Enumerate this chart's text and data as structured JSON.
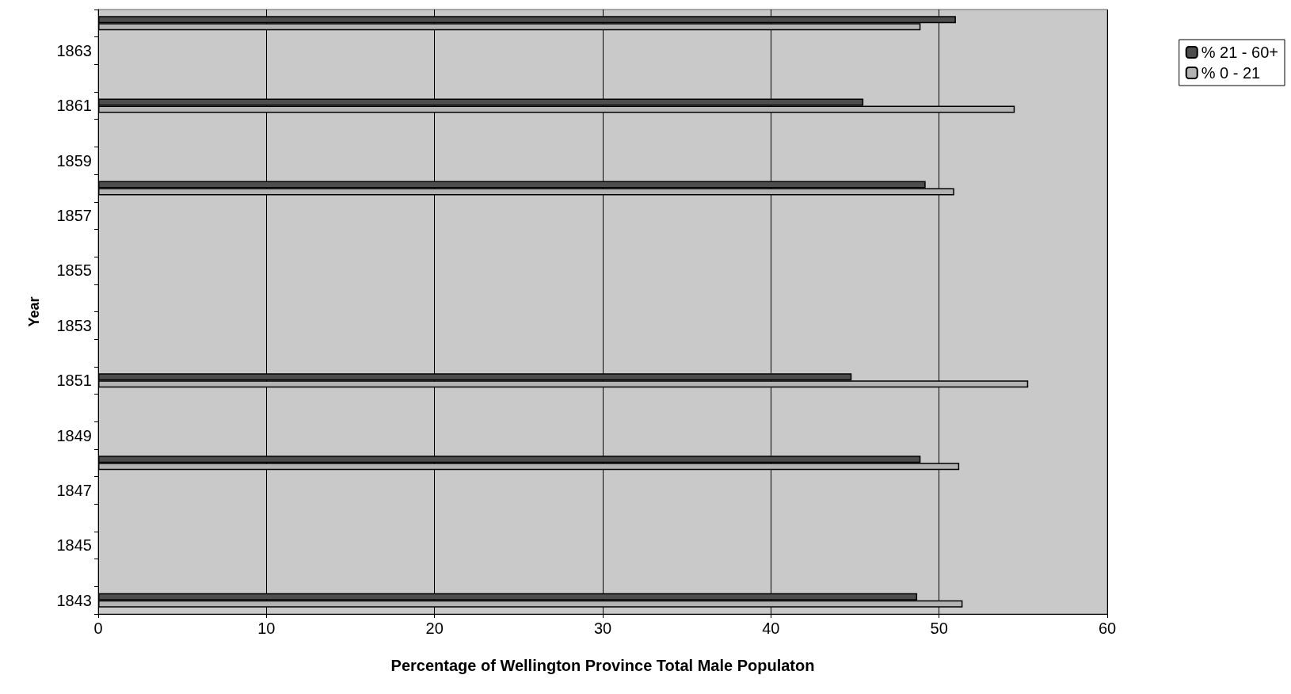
{
  "chart_data": {
    "type": "bar",
    "orientation": "horizontal",
    "xlabel": "Percentage of Wellington Province Total Male Populaton",
    "ylabel": "Year",
    "categories": [
      null,
      "1863",
      null,
      "1861",
      null,
      "1859",
      null,
      "1857",
      null,
      "1855",
      null,
      "1853",
      null,
      "1851",
      null,
      "1849",
      null,
      "1847",
      null,
      "1845",
      null,
      "1843"
    ],
    "series": [
      {
        "name": "% 21 - 60+",
        "color": "#4d4d4d",
        "values": [
          51.0,
          null,
          null,
          45.5,
          null,
          null,
          49.2,
          null,
          null,
          null,
          null,
          null,
          null,
          44.8,
          null,
          null,
          48.9,
          null,
          null,
          null,
          null,
          48.7
        ]
      },
      {
        "name": "% 0 - 21",
        "color": "#b3b3b3",
        "values": [
          48.9,
          null,
          null,
          54.5,
          null,
          null,
          50.9,
          null,
          null,
          null,
          null,
          null,
          null,
          55.3,
          null,
          null,
          51.2,
          null,
          null,
          null,
          null,
          51.4
        ]
      }
    ],
    "xlim": [
      0,
      60
    ],
    "xticks": [
      0,
      10,
      20,
      30,
      40,
      50,
      60
    ],
    "grid": "x",
    "legend": "top right"
  }
}
